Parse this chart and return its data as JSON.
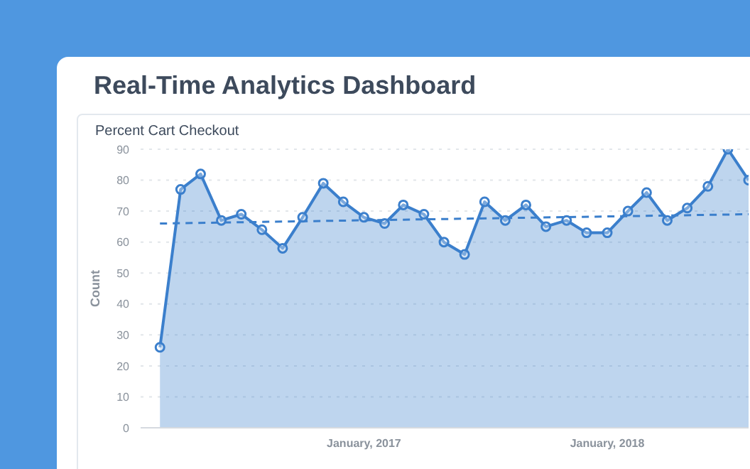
{
  "chart_data": {
    "type": "area",
    "title": "Real-Time Analytics Dashboard",
    "subtitle": "Percent Cart Checkout",
    "ylabel": "Count",
    "x": [
      "2016-03",
      "2016-04",
      "2016-05",
      "2016-06",
      "2016-07",
      "2016-08",
      "2016-09",
      "2016-10",
      "2016-11",
      "2016-12",
      "2017-01",
      "2017-02",
      "2017-03",
      "2017-04",
      "2017-05",
      "2017-06",
      "2017-07",
      "2017-08",
      "2017-09",
      "2017-10",
      "2017-11",
      "2017-12",
      "2018-01",
      "2018-02",
      "2018-03",
      "2018-04",
      "2018-05",
      "2018-06",
      "2018-07",
      "2018-08"
    ],
    "series": [
      {
        "color": "#3b7fcc",
        "values": [
          26,
          77,
          82,
          67,
          69,
          64,
          58,
          68,
          79,
          73,
          68,
          66,
          72,
          69,
          60,
          56,
          73,
          67,
          72,
          65,
          67,
          63,
          63,
          70,
          76,
          67,
          71,
          78,
          90,
          80
        ]
      },
      {
        "type": "line",
        "color": "#3b7fcc",
        "line_style": "dashed",
        "marker": "none",
        "x": [
          "2016-03",
          "2018-08"
        ],
        "values": [
          66,
          69
        ]
      }
    ],
    "xlim": [
      "2016-02",
      "2018-08"
    ],
    "xticks": [
      {
        "value": "2017-01",
        "label": "January, 2017"
      },
      {
        "value": "2018-01",
        "label": "January, 2018"
      }
    ],
    "ylim": [
      0,
      90
    ],
    "yticks": [
      0,
      10,
      20,
      30,
      40,
      50,
      60,
      70,
      80,
      90
    ],
    "grid": "y",
    "legend": false,
    "marker": "circle",
    "line_style": "solid"
  }
}
